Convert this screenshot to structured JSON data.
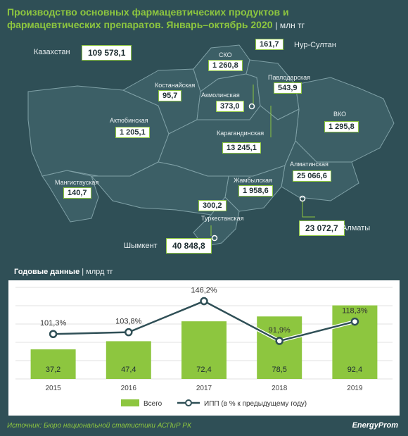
{
  "title": "Производство основных фармацевтических продуктов и фармацевтических препаратов. Январь–октябрь 2020",
  "title_unit": "| млн тг",
  "kazakhstan": {
    "label": "Казахстан",
    "value": "109 578,1"
  },
  "regions": [
    {
      "id": "sko",
      "name": "СКО",
      "value": "1 260,8"
    },
    {
      "id": "nur",
      "name": "Нур-Султан",
      "value": "161,7"
    },
    {
      "id": "pav",
      "name": "Павлодарская",
      "value": "543,9"
    },
    {
      "id": "kos",
      "name": "Костанайская",
      "value": "95,7"
    },
    {
      "id": "akm",
      "name": "Акмолинская",
      "value": "373,0"
    },
    {
      "id": "vko",
      "name": "ВКО",
      "value": "1 295,8"
    },
    {
      "id": "akt",
      "name": "Актюбинская",
      "value": "1 205,1"
    },
    {
      "id": "kar",
      "name": "Карагандинская",
      "value": "13 245,1"
    },
    {
      "id": "alm",
      "name": "Алматинская",
      "value": "25 066,6"
    },
    {
      "id": "man",
      "name": "Мангистауская",
      "value": "140,7"
    },
    {
      "id": "zhm",
      "name": "Жамбылская",
      "value": "1 958,6"
    },
    {
      "id": "kyz",
      "name": "",
      "value": "300,2"
    },
    {
      "id": "tur",
      "name": "Туркестанская",
      "value": ""
    },
    {
      "id": "shy",
      "name": "Шымкент",
      "value": "40 848,8"
    },
    {
      "id": "almc",
      "name": "Алматы",
      "value": "23 072,7"
    }
  ],
  "annual": {
    "title": "Годовые данные",
    "unit": "| млрд тг"
  },
  "chart_data": {
    "type": "bar",
    "categories": [
      "2015",
      "2016",
      "2017",
      "2018",
      "2019"
    ],
    "series": [
      {
        "name": "Всего",
        "type": "bar",
        "values": [
          37.2,
          47.4,
          72.4,
          78.5,
          92.4
        ],
        "labels": [
          "37,2",
          "47,4",
          "72,4",
          "78,5",
          "92,4"
        ],
        "color": "#8dc63f"
      },
      {
        "name": "ИПП (в % к предыдущему году)",
        "type": "line",
        "values": [
          101.3,
          103.8,
          146.2,
          91.9,
          118.3
        ],
        "labels": [
          "101,3%",
          "103,8%",
          "146,2%",
          "91,9%",
          "118,3%"
        ],
        "color": "#2f4f56"
      }
    ],
    "ylim_bar": [
      0,
      115
    ],
    "ylim_line": [
      40,
      165
    ],
    "grid": true,
    "legend": "bottom"
  },
  "footer": {
    "source": "Источник: Бюро национальной статистики АСПиР РК",
    "brand": "EnergyProm"
  },
  "colors": {
    "background": "#2f4f56",
    "accent": "#8dc63f",
    "region": "#3c5f66",
    "border": "#7fa0a6"
  }
}
